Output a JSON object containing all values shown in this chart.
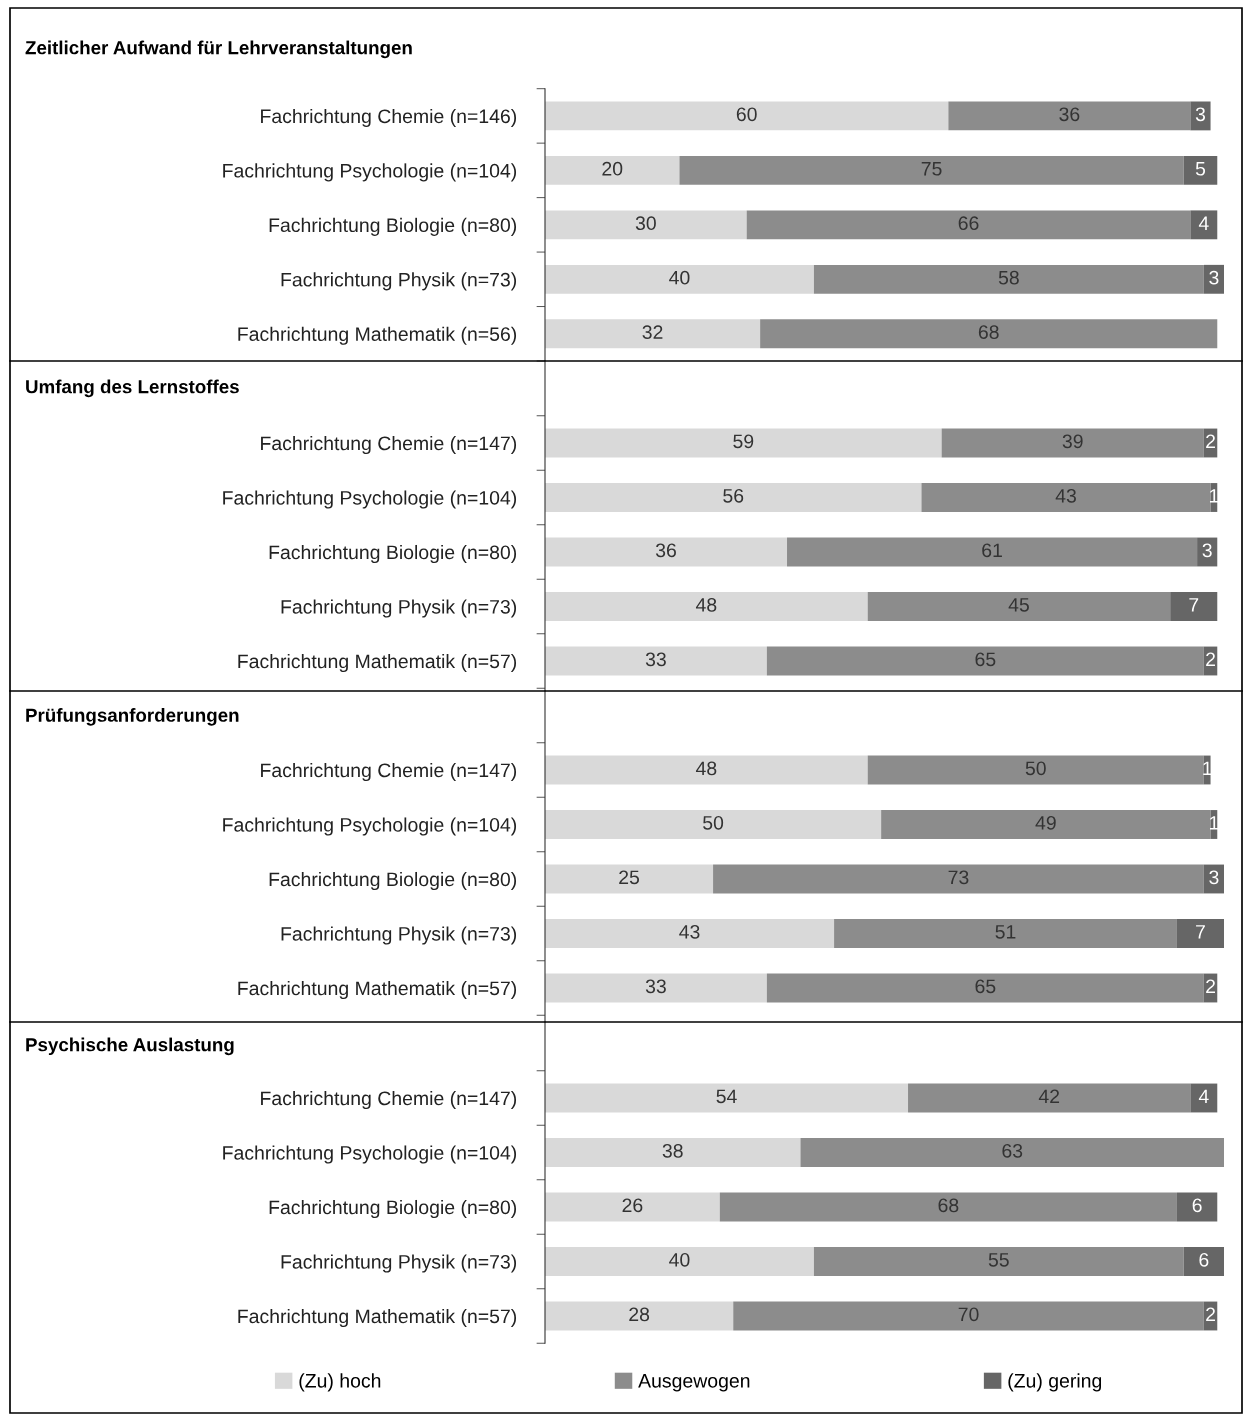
{
  "chart_data": [
    {
      "type": "bar",
      "orientation": "horizontal",
      "stacked": true,
      "data_labels": true,
      "legend": "bottom",
      "title": "Zeitlicher Aufwand für Lehrveranstaltungen",
      "categories": [
        "Fachrichtung Chemie (n=146)",
        "Fachrichtung Psychologie (n=104)",
        "Fachrichtung Biologie (n=80)",
        "Fachrichtung Physik (n=73)",
        "Fachrichtung Mathematik (n=56)"
      ],
      "series": [
        {
          "name": "(Zu) hoch",
          "color": "#d9d9d9",
          "values": [
            60,
            20,
            30,
            40,
            32
          ]
        },
        {
          "name": "Ausgewogen",
          "color": "#8c8c8c",
          "values": [
            36,
            75,
            66,
            58,
            68
          ]
        },
        {
          "name": "(Zu) gering",
          "color": "#666666",
          "values": [
            3,
            5,
            4,
            3,
            null
          ]
        }
      ]
    },
    {
      "type": "bar",
      "orientation": "horizontal",
      "stacked": true,
      "data_labels": true,
      "title": "Umfang des Lernstoffes",
      "categories": [
        "Fachrichtung Chemie (n=147)",
        "Fachrichtung Psychologie (n=104)",
        "Fachrichtung Biologie (n=80)",
        "Fachrichtung Physik (n=73)",
        "Fachrichtung Mathematik (n=57)"
      ],
      "series": [
        {
          "color": "#d9d9d9",
          "values": [
            59,
            56,
            36,
            48,
            33
          ]
        },
        {
          "color": "#8c8c8c",
          "values": [
            39,
            43,
            61,
            45,
            65
          ]
        },
        {
          "color": "#666666",
          "values": [
            2,
            1,
            3,
            7,
            2
          ]
        }
      ]
    },
    {
      "type": "bar",
      "orientation": "horizontal",
      "stacked": true,
      "data_labels": true,
      "title": "Prüfungsanforderungen",
      "categories": [
        "Fachrichtung Chemie (n=147)",
        "Fachrichtung Psychologie (n=104)",
        "Fachrichtung Biologie (n=80)",
        "Fachrichtung Physik (n=73)",
        "Fachrichtung Mathematik (n=57)"
      ],
      "series": [
        {
          "color": "#d9d9d9",
          "values": [
            48,
            50,
            25,
            43,
            33
          ]
        },
        {
          "color": "#8c8c8c",
          "values": [
            50,
            49,
            73,
            51,
            65
          ]
        },
        {
          "color": "#666666",
          "values": [
            1,
            1,
            3,
            7,
            2
          ]
        }
      ]
    },
    {
      "type": "bar",
      "orientation": "horizontal",
      "stacked": true,
      "data_labels": true,
      "title": "Psychische Auslastung",
      "categories": [
        "Fachrichtung Chemie (n=147)",
        "Fachrichtung Psychologie (n=104)",
        "Fachrichtung Biologie (n=80)",
        "Fachrichtung Physik (n=73)",
        "Fachrichtung Mathematik (n=57)"
      ],
      "series": [
        {
          "color": "#d9d9d9",
          "values": [
            54,
            38,
            26,
            40,
            28
          ]
        },
        {
          "color": "#8c8c8c",
          "values": [
            42,
            63,
            68,
            55,
            70
          ]
        },
        {
          "color": "#666666",
          "values": [
            4,
            null,
            6,
            6,
            2
          ]
        }
      ]
    }
  ]
}
